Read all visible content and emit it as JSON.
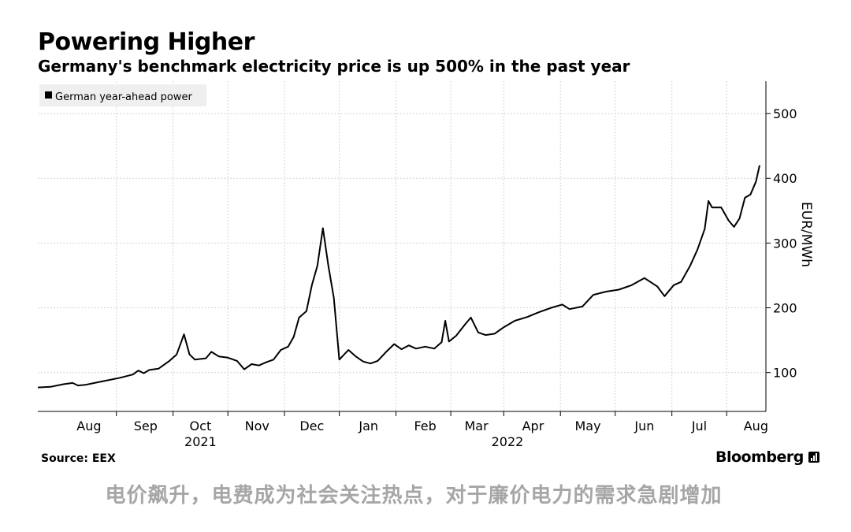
{
  "chart_data": {
    "type": "line",
    "title": "Powering Higher",
    "subtitle": "Germany's benchmark electricity price is up 500% in the past year",
    "ylabel": "EUR/MWh",
    "ylim": [
      40,
      550
    ],
    "yticks": [
      100,
      200,
      300,
      400,
      500
    ],
    "xlim": [
      "2021-07-18",
      "2022-08-17"
    ],
    "months": [
      {
        "label": "Aug",
        "date": "2021-08-15"
      },
      {
        "label": "Sep",
        "date": "2021-09-15"
      },
      {
        "label": "Oct",
        "date": "2021-10-15"
      },
      {
        "label": "Nov",
        "date": "2021-11-15"
      },
      {
        "label": "Dec",
        "date": "2021-12-15"
      },
      {
        "label": "Jan",
        "date": "2022-01-15"
      },
      {
        "label": "Feb",
        "date": "2022-02-15"
      },
      {
        "label": "Mar",
        "date": "2022-03-15"
      },
      {
        "label": "Apr",
        "date": "2022-04-15"
      },
      {
        "label": "May",
        "date": "2022-05-15"
      },
      {
        "label": "Jun",
        "date": "2022-06-15"
      },
      {
        "label": "Jul",
        "date": "2022-07-15"
      },
      {
        "label": "Aug",
        "date": "2022-08-15"
      }
    ],
    "years": [
      {
        "label": "2021",
        "date": "2021-10-15"
      },
      {
        "label": "2022",
        "date": "2022-04-01"
      }
    ],
    "grid": true,
    "legend": "top-left",
    "series": [
      {
        "name": "German year-ahead power",
        "color": "#000000",
        "points": [
          [
            "2021-07-18",
            77
          ],
          [
            "2021-07-25",
            78
          ],
          [
            "2021-08-01",
            82
          ],
          [
            "2021-08-06",
            84
          ],
          [
            "2021-08-09",
            80
          ],
          [
            "2021-08-13",
            81
          ],
          [
            "2021-08-18",
            84
          ],
          [
            "2021-08-25",
            88
          ],
          [
            "2021-09-01",
            92
          ],
          [
            "2021-09-08",
            97
          ],
          [
            "2021-09-11",
            103
          ],
          [
            "2021-09-14",
            99
          ],
          [
            "2021-09-17",
            104
          ],
          [
            "2021-09-22",
            106
          ],
          [
            "2021-09-28",
            118
          ],
          [
            "2021-10-02",
            128
          ],
          [
            "2021-10-06",
            159
          ],
          [
            "2021-10-09",
            128
          ],
          [
            "2021-10-12",
            120
          ],
          [
            "2021-10-18",
            122
          ],
          [
            "2021-10-21",
            132
          ],
          [
            "2021-10-25",
            125
          ],
          [
            "2021-10-30",
            123
          ],
          [
            "2021-11-04",
            118
          ],
          [
            "2021-11-08",
            105
          ],
          [
            "2021-11-12",
            113
          ],
          [
            "2021-11-16",
            111
          ],
          [
            "2021-11-20",
            116
          ],
          [
            "2021-11-24",
            120
          ],
          [
            "2021-11-28",
            135
          ],
          [
            "2021-12-02",
            140
          ],
          [
            "2021-12-05",
            155
          ],
          [
            "2021-12-08",
            185
          ],
          [
            "2021-12-12",
            195
          ],
          [
            "2021-12-15",
            235
          ],
          [
            "2021-12-18",
            265
          ],
          [
            "2021-12-21",
            323
          ],
          [
            "2021-12-24",
            265
          ],
          [
            "2021-12-27",
            215
          ],
          [
            "2021-12-30",
            120
          ],
          [
            "2022-01-04",
            135
          ],
          [
            "2022-01-08",
            125
          ],
          [
            "2022-01-12",
            117
          ],
          [
            "2022-01-16",
            114
          ],
          [
            "2022-01-20",
            118
          ],
          [
            "2022-01-25",
            133
          ],
          [
            "2022-01-29",
            144
          ],
          [
            "2022-02-02",
            136
          ],
          [
            "2022-02-06",
            142
          ],
          [
            "2022-02-10",
            137
          ],
          [
            "2022-02-15",
            140
          ],
          [
            "2022-02-20",
            137
          ],
          [
            "2022-02-24",
            147
          ],
          [
            "2022-02-26",
            180
          ],
          [
            "2022-02-28",
            148
          ],
          [
            "2022-03-04",
            157
          ],
          [
            "2022-03-09",
            175
          ],
          [
            "2022-03-12",
            185
          ],
          [
            "2022-03-16",
            162
          ],
          [
            "2022-03-20",
            158
          ],
          [
            "2022-03-25",
            160
          ],
          [
            "2022-03-30",
            170
          ],
          [
            "2022-04-05",
            180
          ],
          [
            "2022-04-12",
            186
          ],
          [
            "2022-04-18",
            193
          ],
          [
            "2022-04-25",
            200
          ],
          [
            "2022-05-01",
            205
          ],
          [
            "2022-05-05",
            198
          ],
          [
            "2022-05-12",
            202
          ],
          [
            "2022-05-18",
            220
          ],
          [
            "2022-05-25",
            225
          ],
          [
            "2022-06-01",
            228
          ],
          [
            "2022-06-08",
            235
          ],
          [
            "2022-06-15",
            246
          ],
          [
            "2022-06-22",
            233
          ],
          [
            "2022-06-26",
            218
          ],
          [
            "2022-07-01",
            235
          ],
          [
            "2022-07-05",
            240
          ],
          [
            "2022-07-10",
            265
          ],
          [
            "2022-07-14",
            290
          ],
          [
            "2022-07-18",
            322
          ],
          [
            "2022-07-20",
            365
          ],
          [
            "2022-07-22",
            355
          ],
          [
            "2022-07-27",
            355
          ],
          [
            "2022-07-31",
            335
          ],
          [
            "2022-08-03",
            325
          ],
          [
            "2022-08-06",
            338
          ],
          [
            "2022-08-09",
            370
          ],
          [
            "2022-08-12",
            375
          ],
          [
            "2022-08-15",
            395
          ],
          [
            "2022-08-17",
            420
          ]
        ]
      }
    ]
  },
  "source": "Source: EEX",
  "brand": "Bloomberg",
  "caption": "电价飙升，电费成为社会关注热点，对于廉价电力的需求急剧增加"
}
